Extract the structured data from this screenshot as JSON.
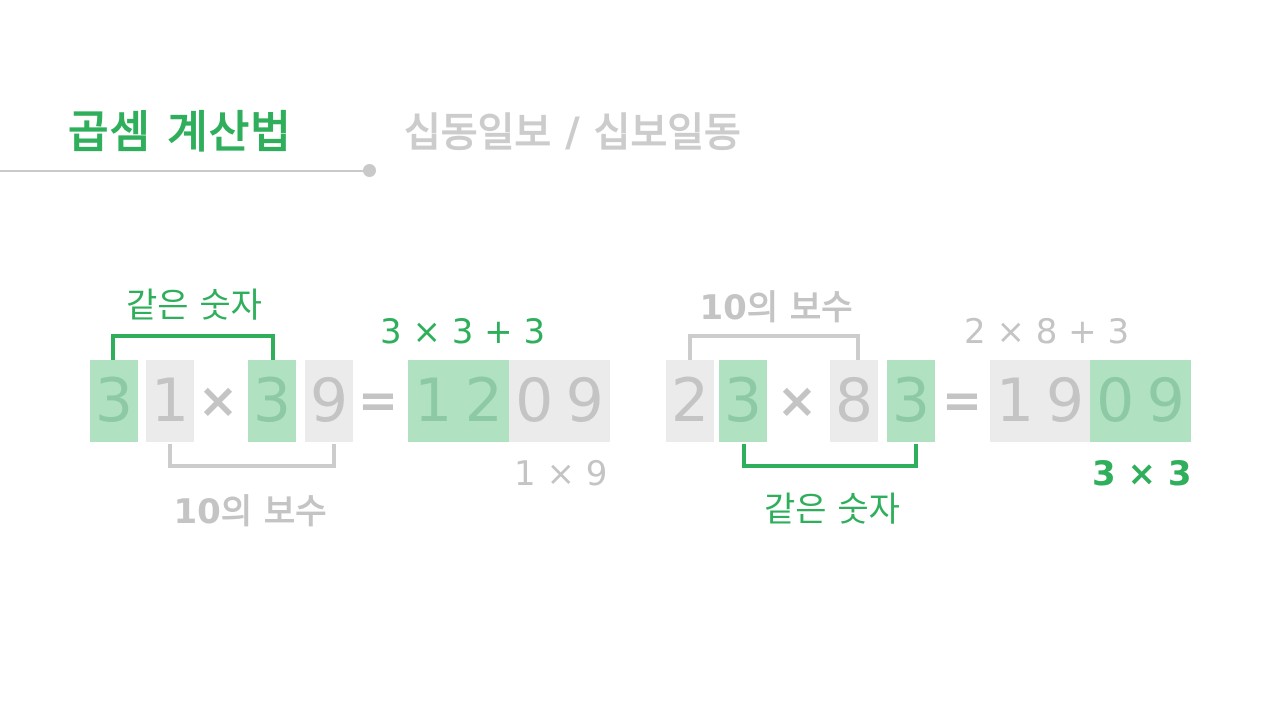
{
  "header": {
    "title": "곱셈 계산법",
    "subtitle": "십동일보 / 십보일동"
  },
  "example1": {
    "digits": [
      "3",
      "1",
      "×",
      "3",
      "9",
      "="
    ],
    "result_left": [
      "1",
      "2"
    ],
    "result_right": [
      "0",
      "9"
    ],
    "top_label": "같은 숫자",
    "bottom_label": "10의 보수",
    "formula_top": "3 × 3 + 3",
    "formula_bottom": "1 × 9"
  },
  "example2": {
    "digits": [
      "2",
      "3",
      "×",
      "8",
      "3",
      "="
    ],
    "result_left": [
      "1",
      "9"
    ],
    "result_right": [
      "0",
      "9"
    ],
    "top_label": "10의 보수",
    "bottom_label": "같은 숫자",
    "formula_top": "2 × 8 + 3",
    "formula_bottom": "3 × 3"
  },
  "colors": {
    "accent_green": "#2faf5c",
    "light_green": "#b0e1c1",
    "grey_box": "#ebebeb",
    "grey_text": "#c4c4c4"
  }
}
